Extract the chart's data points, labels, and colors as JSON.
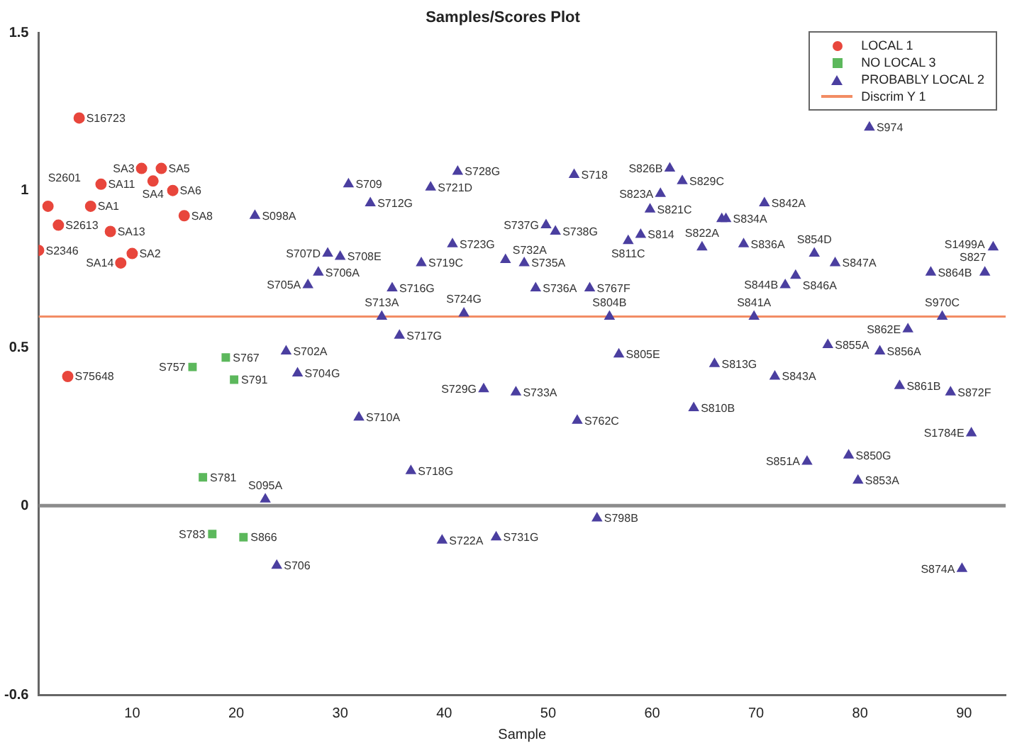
{
  "chart_data": {
    "type": "scatter",
    "title": "Samples/Scores Plot",
    "xlabel": "Sample",
    "xlim": [
      1,
      94
    ],
    "xticks": [
      10,
      20,
      30,
      40,
      50,
      60,
      70,
      80,
      90
    ],
    "ylim": [
      -0.6,
      1.5
    ],
    "yticks": [
      -0.6,
      0,
      0.5,
      1,
      1.5
    ],
    "grid": false,
    "legend": "top right",
    "series": [
      {
        "name": "LOCAL 1",
        "color": "#e8463c",
        "marker": "circle",
        "x": [
          4.9,
          1.9,
          10.9,
          12.8,
          7.0,
          12.0,
          13.9,
          6.0,
          15.0,
          2.9,
          7.9,
          10.0,
          8.9,
          1.0,
          3.8
        ],
        "values": [
          1.23,
          0.95,
          1.07,
          1.07,
          1.02,
          1.03,
          1.0,
          0.95,
          0.92,
          0.89,
          0.87,
          0.8,
          0.77,
          0.81,
          0.41
        ]
      },
      {
        "name": "NO LOCAL 3",
        "color": "#5cb85c",
        "marker": "square",
        "x": [
          15.8,
          19.0,
          19.8,
          16.8,
          17.7,
          20.7
        ],
        "values": [
          0.44,
          0.47,
          0.4,
          0.09,
          -0.09,
          -0.1
        ]
      },
      {
        "name": "PROBABLY LOCAL 2",
        "color": "#4b3fa0",
        "marker": "triangle",
        "x": [
          21.8,
          30.8,
          32.9,
          38.7,
          41.3,
          52.5,
          28.8,
          30.0,
          27.9,
          26.9,
          37.8,
          35.0,
          34.0,
          35.7,
          40.8,
          41.9,
          49.8,
          50.7,
          45.9,
          47.7,
          48.8,
          54.0,
          57.7,
          58.9,
          61.7,
          62.9,
          60.8,
          59.8,
          66.7,
          67.1,
          70.8,
          64.8,
          68.8,
          75.6,
          77.6,
          73.8,
          72.8,
          86.8,
          92.0,
          92.8,
          80.9,
          55.9,
          69.8,
          87.9,
          84.6,
          76.9,
          81.9,
          56.8,
          66.0,
          83.8,
          88.7,
          90.7,
          71.8,
          64.0,
          52.8,
          46.9,
          43.8,
          78.9,
          74.9,
          79.8,
          54.7,
          45.0,
          89.8,
          39.8,
          23.9,
          22.8,
          31.8,
          36.8,
          25.9,
          24.8
        ],
        "values": [
          0.92,
          1.02,
          0.96,
          1.01,
          1.06,
          1.05,
          0.8,
          0.79,
          0.74,
          0.7,
          0.77,
          0.69,
          0.6,
          0.54,
          0.83,
          0.61,
          0.89,
          0.87,
          0.78,
          0.77,
          0.69,
          0.69,
          0.84,
          0.86,
          1.07,
          1.03,
          0.99,
          0.94,
          0.91,
          0.91,
          0.96,
          0.82,
          0.83,
          0.8,
          0.77,
          0.73,
          0.7,
          0.74,
          0.74,
          0.82,
          1.2,
          0.6,
          0.6,
          0.6,
          0.56,
          0.51,
          0.49,
          0.48,
          0.45,
          0.38,
          0.36,
          0.23,
          0.41,
          0.31,
          0.27,
          0.36,
          0.37,
          0.16,
          0.14,
          0.08,
          -0.04,
          -0.1,
          -0.2,
          -0.11,
          -0.19,
          0.02,
          0.28,
          0.11,
          0.42,
          0.49
        ]
      }
    ],
    "ref_lines": [
      {
        "axis": "y",
        "value": 0.6,
        "label": "Discrim Y 1",
        "color": "#f28c64"
      },
      {
        "axis": "y",
        "value": 0,
        "color": "#8c8c8c"
      }
    ],
    "annotations": [
      {
        "text": "S16723",
        "x": 4.9,
        "y": 1.23
      },
      {
        "text": "S2601",
        "x": 1.9,
        "y": 0.95
      },
      {
        "text": "SA3",
        "x": 10.9,
        "y": 1.07
      },
      {
        "text": "SA5",
        "x": 12.8,
        "y": 1.07
      },
      {
        "text": "SA11",
        "x": 7.0,
        "y": 1.02
      },
      {
        "text": "SA4",
        "x": 12.0,
        "y": 1.03
      },
      {
        "text": "SA6",
        "x": 13.9,
        "y": 1.0
      },
      {
        "text": "SA1",
        "x": 6.0,
        "y": 0.95
      },
      {
        "text": "SA8",
        "x": 15.0,
        "y": 0.92
      },
      {
        "text": "S2613",
        "x": 2.9,
        "y": 0.89
      },
      {
        "text": "SA13",
        "x": 7.9,
        "y": 0.87
      },
      {
        "text": "SA2",
        "x": 10.0,
        "y": 0.8
      },
      {
        "text": "SA14",
        "x": 8.9,
        "y": 0.77
      },
      {
        "text": "S2346",
        "x": 1.0,
        "y": 0.81
      },
      {
        "text": "S75648",
        "x": 3.8,
        "y": 0.41
      },
      {
        "text": "S757",
        "x": 15.8,
        "y": 0.44
      },
      {
        "text": "S767",
        "x": 19.0,
        "y": 0.47
      },
      {
        "text": "S791",
        "x": 19.8,
        "y": 0.4
      },
      {
        "text": "S781",
        "x": 16.8,
        "y": 0.09
      },
      {
        "text": "S783",
        "x": 17.7,
        "y": -0.09
      },
      {
        "text": "S866",
        "x": 20.7,
        "y": -0.1
      },
      {
        "text": "S098A",
        "x": 21.8,
        "y": 0.92
      },
      {
        "text": "S709",
        "x": 30.8,
        "y": 1.02
      },
      {
        "text": "S712G",
        "x": 32.9,
        "y": 0.96
      },
      {
        "text": "S721D",
        "x": 38.7,
        "y": 1.01
      },
      {
        "text": "S728G",
        "x": 41.3,
        "y": 1.06
      },
      {
        "text": "S718",
        "x": 52.5,
        "y": 1.05
      },
      {
        "text": "S707D",
        "x": 28.8,
        "y": 0.8
      },
      {
        "text": "S708E",
        "x": 30.0,
        "y": 0.79
      },
      {
        "text": "S706A",
        "x": 27.9,
        "y": 0.74
      },
      {
        "text": "S705A",
        "x": 26.9,
        "y": 0.7
      },
      {
        "text": "S719C",
        "x": 37.8,
        "y": 0.77
      },
      {
        "text": "S716G",
        "x": 35.0,
        "y": 0.69
      },
      {
        "text": "S713A",
        "x": 34.0,
        "y": 0.6
      },
      {
        "text": "S717G",
        "x": 35.7,
        "y": 0.54
      },
      {
        "text": "S723G",
        "x": 40.8,
        "y": 0.83
      },
      {
        "text": "S724G",
        "x": 41.9,
        "y": 0.61
      },
      {
        "text": "S737G",
        "x": 49.8,
        "y": 0.89
      },
      {
        "text": "S738G",
        "x": 50.7,
        "y": 0.87
      },
      {
        "text": "S732A",
        "x": 45.9,
        "y": 0.78
      },
      {
        "text": "S735A",
        "x": 47.7,
        "y": 0.77
      },
      {
        "text": "S736A",
        "x": 48.8,
        "y": 0.69
      },
      {
        "text": "S767F",
        "x": 54.0,
        "y": 0.69
      },
      {
        "text": "S811C",
        "x": 57.7,
        "y": 0.84
      },
      {
        "text": "S814",
        "x": 58.9,
        "y": 0.86
      },
      {
        "text": "S826B",
        "x": 61.7,
        "y": 1.07
      },
      {
        "text": "S829C",
        "x": 62.9,
        "y": 1.03
      },
      {
        "text": "S823A",
        "x": 60.8,
        "y": 0.99
      },
      {
        "text": "S821C",
        "x": 59.8,
        "y": 0.94
      },
      {
        "text": "S834A",
        "x": 67.1,
        "y": 0.91
      },
      {
        "text": "S842A",
        "x": 70.8,
        "y": 0.96
      },
      {
        "text": "S822A",
        "x": 64.8,
        "y": 0.82
      },
      {
        "text": "S836A",
        "x": 68.8,
        "y": 0.83
      },
      {
        "text": "S854D",
        "x": 75.6,
        "y": 0.8
      },
      {
        "text": "S847A",
        "x": 77.6,
        "y": 0.77
      },
      {
        "text": "S846A",
        "x": 73.8,
        "y": 0.73
      },
      {
        "text": "S844B",
        "x": 72.8,
        "y": 0.7
      },
      {
        "text": "S864B",
        "x": 86.8,
        "y": 0.74
      },
      {
        "text": "S1499A",
        "x": 92.0,
        "y": 0.74
      },
      {
        "text": "S827",
        "x": 92.8,
        "y": 0.82
      },
      {
        "text": "S974",
        "x": 80.9,
        "y": 1.2
      },
      {
        "text": "S804B",
        "x": 55.9,
        "y": 0.6
      },
      {
        "text": "S841A",
        "x": 69.8,
        "y": 0.6
      },
      {
        "text": "S970C",
        "x": 87.9,
        "y": 0.6
      },
      {
        "text": "S862E",
        "x": 84.6,
        "y": 0.56
      },
      {
        "text": "S855A",
        "x": 76.9,
        "y": 0.51
      },
      {
        "text": "S856A",
        "x": 81.9,
        "y": 0.49
      },
      {
        "text": "S805E",
        "x": 56.8,
        "y": 0.48
      },
      {
        "text": "S813G",
        "x": 66.0,
        "y": 0.45
      },
      {
        "text": "S861B",
        "x": 83.8,
        "y": 0.38
      },
      {
        "text": "S872F",
        "x": 88.7,
        "y": 0.36
      },
      {
        "text": "S1784E",
        "x": 90.7,
        "y": 0.23
      },
      {
        "text": "S843A",
        "x": 71.8,
        "y": 0.41
      },
      {
        "text": "S810B",
        "x": 64.0,
        "y": 0.31
      },
      {
        "text": "S762C",
        "x": 52.8,
        "y": 0.27
      },
      {
        "text": "S733A",
        "x": 46.9,
        "y": 0.36
      },
      {
        "text": "S729G",
        "x": 43.8,
        "y": 0.37
      },
      {
        "text": "S850G",
        "x": 78.9,
        "y": 0.16
      },
      {
        "text": "S851A",
        "x": 74.9,
        "y": 0.14
      },
      {
        "text": "S853A",
        "x": 79.8,
        "y": 0.08
      },
      {
        "text": "S798B",
        "x": 54.7,
        "y": -0.04
      },
      {
        "text": "S731G",
        "x": 45.0,
        "y": -0.1
      },
      {
        "text": "S874A",
        "x": 89.8,
        "y": -0.2
      },
      {
        "text": "S722A",
        "x": 39.8,
        "y": -0.11
      },
      {
        "text": "S706",
        "x": 23.9,
        "y": -0.19
      },
      {
        "text": "S095A",
        "x": 22.8,
        "y": 0.02
      },
      {
        "text": "S710A",
        "x": 31.8,
        "y": 0.28
      },
      {
        "text": "S718G",
        "x": 36.8,
        "y": 0.11
      },
      {
        "text": "S704G",
        "x": 25.9,
        "y": 0.42
      },
      {
        "text": "S702A",
        "x": 24.8,
        "y": 0.49
      }
    ]
  }
}
